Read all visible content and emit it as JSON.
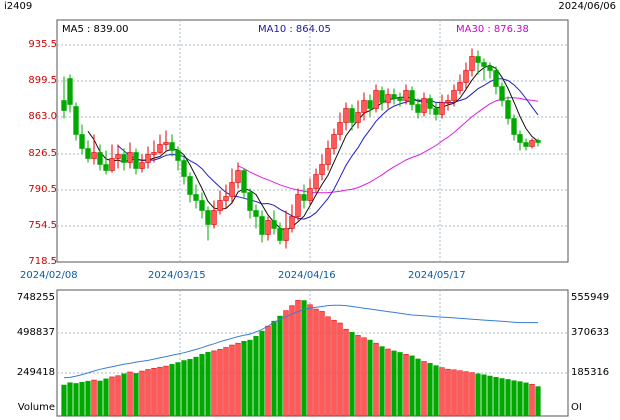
{
  "header": {
    "symbol": "i2409",
    "date": "2024/06/06",
    "ma5_text": "MA5 : 839.00",
    "ma10_text": "MA10 : 864.05",
    "ma30_text": "MA30 : 876.38"
  },
  "price_axis": {
    "min": 718.5,
    "max": 935.5,
    "ticks": [
      "935.5",
      "899.5",
      "863.0",
      "826.5",
      "790.5",
      "754.5",
      "718.5"
    ]
  },
  "date_axis": {
    "labels": [
      "2024/02/08",
      "2024/03/15",
      "2024/04/16",
      "2024/05/17"
    ]
  },
  "volume_axis": {
    "left_ticks": [
      "748255",
      "498837",
      "249418"
    ],
    "right_ticks": [
      "555949",
      "370633",
      "185316"
    ],
    "left_name": "Volume",
    "right_name": "OI",
    "left_max": 748255,
    "right_max": 555949
  },
  "colors": {
    "up": "#ff5a5a",
    "up_stroke": "#e00000",
    "down": "#00a800",
    "ma5": "#111111",
    "ma10": "#1f1fc8",
    "ma30": "#e020e0",
    "oi": "#3b7dd8",
    "grid": "#aab8c8",
    "axis": "#555555"
  },
  "chart_data": {
    "type": "candlestick",
    "candles": [
      [
        880,
        870,
        904,
        862
      ],
      [
        902,
        876,
        906,
        868
      ],
      [
        874,
        846,
        878,
        840
      ],
      [
        846,
        832,
        856,
        826
      ],
      [
        832,
        822,
        840,
        818
      ],
      [
        822,
        828,
        846,
        816
      ],
      [
        828,
        816,
        836,
        810
      ],
      [
        816,
        810,
        830,
        806
      ],
      [
        810,
        822,
        836,
        808
      ],
      [
        822,
        826,
        836,
        812
      ],
      [
        826,
        818,
        832,
        810
      ],
      [
        818,
        828,
        838,
        812
      ],
      [
        828,
        812,
        832,
        806
      ],
      [
        812,
        818,
        826,
        808
      ],
      [
        818,
        826,
        834,
        812
      ],
      [
        826,
        828,
        840,
        818
      ],
      [
        828,
        836,
        846,
        826
      ],
      [
        836,
        838,
        850,
        830
      ],
      [
        838,
        830,
        846,
        824
      ],
      [
        830,
        820,
        834,
        810
      ],
      [
        820,
        804,
        824,
        796
      ],
      [
        804,
        786,
        808,
        778
      ],
      [
        786,
        780,
        796,
        772
      ],
      [
        780,
        770,
        788,
        762
      ],
      [
        770,
        756,
        774,
        740
      ],
      [
        756,
        770,
        780,
        752
      ],
      [
        770,
        780,
        790,
        766
      ],
      [
        780,
        784,
        796,
        772
      ],
      [
        784,
        798,
        812,
        778
      ],
      [
        798,
        810,
        818,
        792
      ],
      [
        810,
        788,
        812,
        782
      ],
      [
        788,
        770,
        792,
        762
      ],
      [
        770,
        764,
        776,
        752
      ],
      [
        764,
        746,
        770,
        738
      ],
      [
        746,
        760,
        764,
        740
      ],
      [
        760,
        752,
        770,
        746
      ],
      [
        752,
        740,
        758,
        736
      ],
      [
        740,
        752,
        770,
        732
      ],
      [
        752,
        764,
        776,
        748
      ],
      [
        764,
        786,
        792,
        760
      ],
      [
        786,
        780,
        796,
        772
      ],
      [
        780,
        792,
        802,
        776
      ],
      [
        792,
        806,
        812,
        788
      ],
      [
        806,
        816,
        826,
        800
      ],
      [
        816,
        832,
        840,
        810
      ],
      [
        832,
        846,
        852,
        826
      ],
      [
        846,
        858,
        868,
        840
      ],
      [
        858,
        872,
        878,
        850
      ],
      [
        872,
        858,
        876,
        850
      ],
      [
        858,
        868,
        880,
        852
      ],
      [
        868,
        880,
        888,
        860
      ],
      [
        880,
        872,
        886,
        864
      ],
      [
        872,
        890,
        896,
        868
      ],
      [
        890,
        878,
        894,
        870
      ],
      [
        878,
        886,
        892,
        872
      ],
      [
        886,
        882,
        892,
        876
      ],
      [
        882,
        880,
        888,
        874
      ],
      [
        880,
        890,
        896,
        876
      ],
      [
        890,
        876,
        894,
        870
      ],
      [
        876,
        868,
        882,
        862
      ],
      [
        868,
        882,
        888,
        864
      ],
      [
        882,
        872,
        886,
        866
      ],
      [
        872,
        866,
        878,
        860
      ],
      [
        866,
        878,
        886,
        862
      ],
      [
        878,
        880,
        886,
        870
      ],
      [
        880,
        890,
        896,
        874
      ],
      [
        890,
        898,
        906,
        886
      ],
      [
        898,
        910,
        918,
        892
      ],
      [
        910,
        924,
        932,
        904
      ],
      [
        924,
        918,
        930,
        906
      ],
      [
        918,
        914,
        922,
        900
      ],
      [
        914,
        910,
        918,
        902
      ],
      [
        910,
        894,
        914,
        886
      ],
      [
        894,
        880,
        898,
        874
      ],
      [
        880,
        862,
        884,
        856
      ],
      [
        862,
        846,
        866,
        840
      ],
      [
        846,
        838,
        850,
        830
      ],
      [
        838,
        834,
        842,
        830
      ],
      [
        834,
        840,
        842,
        832
      ],
      [
        840,
        838,
        842,
        834
      ]
    ],
    "ma5_last": 839.0,
    "ma10_last": 864.05,
    "ma30_last": 876.38,
    "volumes": [
      200000,
      215000,
      210000,
      218000,
      225000,
      232000,
      226000,
      240000,
      252000,
      260000,
      272000,
      284000,
      275000,
      290000,
      300000,
      308000,
      315000,
      322000,
      333000,
      345000,
      358000,
      366000,
      380000,
      398000,
      412000,
      420000,
      430000,
      442000,
      458000,
      470000,
      482000,
      490000,
      515000,
      548000,
      580000,
      612000,
      645000,
      680000,
      712000,
      746000,
      745000,
      718000,
      690000,
      675000,
      640000,
      618000,
      600000,
      560000,
      540000,
      520000,
      505000,
      490000,
      470000,
      448000,
      432000,
      420000,
      410000,
      398000,
      388000,
      368000,
      352000,
      340000,
      325000,
      312000,
      302000,
      298000,
      292000,
      286000,
      280000,
      272000,
      266000,
      258000,
      250000,
      242000,
      236000,
      228000,
      222000,
      214000,
      205000,
      190000
    ],
    "oi": [
      180000,
      182000,
      188000,
      195000,
      203000,
      212000,
      220000,
      226000,
      232000,
      238000,
      244000,
      248000,
      254000,
      258000,
      262000,
      268000,
      274000,
      280000,
      286000,
      292000,
      298000,
      306000,
      314000,
      322000,
      332000,
      340000,
      350000,
      358000,
      366000,
      374000,
      380000,
      386000,
      396000,
      408000,
      424000,
      440000,
      456000,
      468000,
      480000,
      492000,
      502000,
      508000,
      512000,
      516000,
      520000,
      522000,
      522000,
      520000,
      516000,
      512000,
      508000,
      504000,
      500000,
      496000,
      492000,
      488000,
      484000,
      480000,
      476000,
      474000,
      472000,
      470000,
      468000,
      466000,
      464000,
      462000,
      460000,
      458000,
      456000,
      454000,
      452000,
      450000,
      448000,
      446000,
      444000,
      442000,
      440000,
      440000,
      440000,
      440000
    ]
  }
}
